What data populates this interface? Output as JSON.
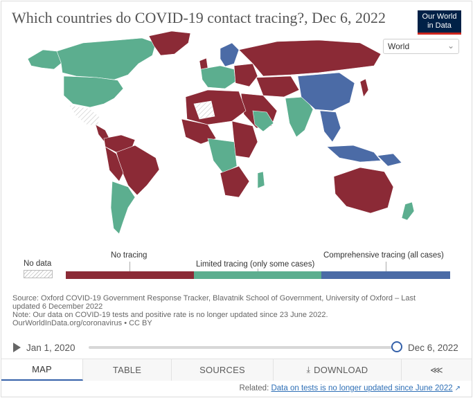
{
  "header": {
    "title": "Which countries do COVID-19 contact tracing?, Dec 6, 2022",
    "logo_line1": "Our World",
    "logo_line2": "in Data",
    "region_select": "World"
  },
  "colors": {
    "no_tracing": "#8b2a36",
    "limited_tracing": "#5cae8f",
    "comprehensive_tracing": "#4b6ba6",
    "brand_navy": "#002147",
    "brand_red": "#ce261e",
    "accent_blue": "#3360a9"
  },
  "legend": {
    "no_data": "No data",
    "bins": [
      {
        "label": "No tracing"
      },
      {
        "label": "Limited tracing (only some cases)"
      },
      {
        "label": "Comprehensive tracing (all cases)"
      }
    ]
  },
  "footer": {
    "source_line1": "Source: Oxford COVID-19 Government Response Tracker, Blavatnik School of Government, University of Oxford – Last",
    "source_line2": "updated 6 December 2022",
    "note": "Note: Our data on COVID-19 tests and positive rate is no longer updated since 23 June 2022.",
    "credit": "OurWorldInData.org/coronavirus • CC BY"
  },
  "timeline": {
    "start": "Jan 1, 2020",
    "end": "Dec 6, 2022",
    "position": 1.0
  },
  "tabs": [
    {
      "label": "MAP",
      "active": true
    },
    {
      "label": "TABLE",
      "active": false
    },
    {
      "label": "SOURCES",
      "active": false
    },
    {
      "label": "DOWNLOAD",
      "active": false
    },
    {
      "label": "",
      "icon": "share-icon",
      "active": false
    }
  ],
  "related": {
    "prefix": "Related:",
    "link_text": "Data on tests is no longer updated since June 2022"
  }
}
